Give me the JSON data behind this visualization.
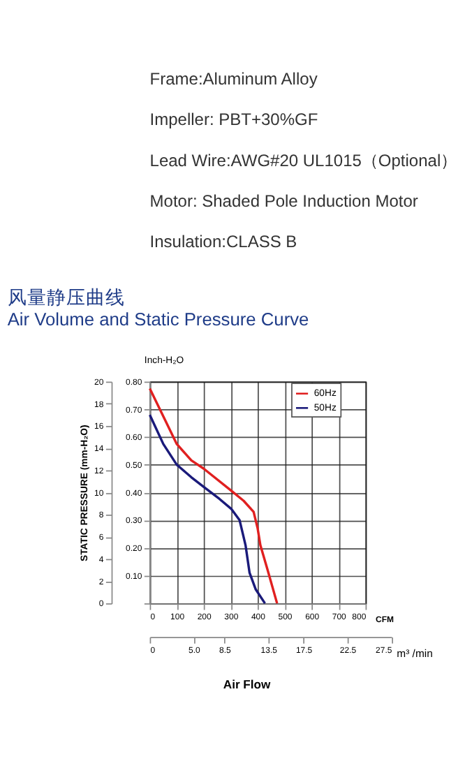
{
  "chart_data": {
    "type": "line",
    "title": "风量静压曲线",
    "subtitle": "Air Volume and Static Pressure Curve",
    "annotations": [
      "Frame:Aluminum Alloy",
      "Impeller: PBT+30%GF",
      "Lead Wire:AWG#20 UL1015（Optional）",
      "Motor: Shaded Pole Induction Motor",
      "Insulation:CLASS B",
      "Air Flow"
    ],
    "xlabel": "CFM",
    "ylabel": "Inch-H₂O",
    "y2label": "STATIC PRESSURE (mm-H₂O)",
    "x2label": "m³ /min",
    "series": [
      {
        "name": "60Hz",
        "color": "#e02020",
        "x": [
          0,
          100,
          154,
          200,
          300,
          348,
          385,
          400,
          410,
          437,
          472
        ],
        "values": [
          0.775,
          0.575,
          0.516,
          0.486,
          0.408,
          0.37,
          0.33,
          0.27,
          0.21,
          0.12,
          0
        ]
      },
      {
        "name": "50Hz",
        "color": "#1a1a7a",
        "x": [
          0,
          50,
          100,
          154,
          200,
          258,
          303,
          333,
          355,
          370,
          393,
          427
        ],
        "values": [
          0.68,
          0.575,
          0.5,
          0.455,
          0.42,
          0.377,
          0.34,
          0.3,
          0.21,
          0.11,
          0.05,
          0
        ]
      }
    ],
    "xlim": [
      0,
      800
    ],
    "xticks": [
      0,
      100,
      200,
      300,
      400,
      500,
      600,
      700,
      800
    ],
    "ylim": [
      0,
      0.8
    ],
    "yticks": [
      {
        "value": 0,
        "label": null
      },
      {
        "value": 0.1,
        "label": "0.10"
      },
      {
        "value": 0.2,
        "label": "0.20"
      },
      {
        "value": 0.3,
        "label": "0.30"
      },
      {
        "value": 0.4,
        "label": "0.40"
      },
      {
        "value": 0.5,
        "label": "0.50"
      },
      {
        "value": 0.6,
        "label": "0.60"
      },
      {
        "value": 0.7,
        "label": "0.70"
      },
      {
        "value": 0.8,
        "label": "0.80"
      }
    ],
    "y2lim": [
      0,
      20
    ],
    "y2ticks": [
      0,
      2,
      4,
      6,
      8,
      10,
      12,
      14,
      16,
      18,
      20
    ],
    "x2lim": [
      0,
      27.5
    ],
    "x2ticks": [
      0,
      {
        "value": 5,
        "label": "5.0"
      },
      8.5,
      13.5,
      17.5,
      22.5,
      27.5
    ],
    "grid": true,
    "legend": "top right",
    "line_style": "solid",
    "marker": "none"
  }
}
